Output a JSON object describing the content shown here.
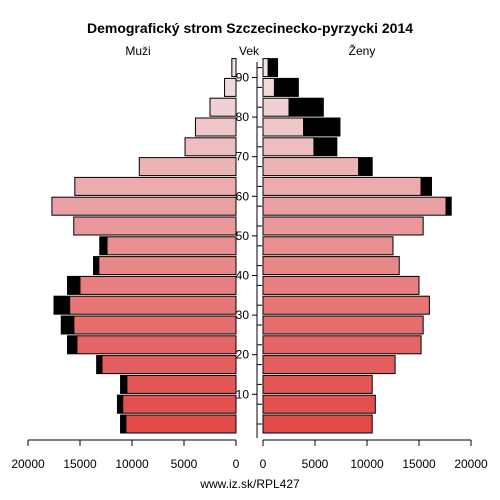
{
  "header": {
    "title": "Demografický strom Szczecinecko-pyrzycki 2014",
    "men_label": "Muži",
    "age_label": "Vek",
    "women_label": "Ženy"
  },
  "footer": {
    "source": "www.iz.sk/RPL427"
  },
  "chart_data": {
    "type": "bar",
    "orientation": "horizontal-population-pyramid",
    "title": "Demografický strom Szczecinecko-pyrzycki 2014",
    "age_groups": [
      "0-4",
      "5-9",
      "10-14",
      "15-19",
      "20-24",
      "25-29",
      "30-34",
      "35-39",
      "40-44",
      "45-49",
      "50-54",
      "55-59",
      "60-64",
      "65-69",
      "70-74",
      "75-79",
      "80-84",
      "85-89",
      "90+"
    ],
    "age_ticks": [
      10,
      20,
      30,
      40,
      50,
      60,
      70,
      80,
      90
    ],
    "x_ticks": {
      "men": [
        "20000",
        "15000",
        "10000",
        "5000",
        "0"
      ],
      "women": [
        "0",
        "5000",
        "10000",
        "15000",
        "20000"
      ]
    },
    "xlim": [
      0,
      20000
    ],
    "series": [
      {
        "name": "Muži",
        "values": [
          10600,
          10900,
          10500,
          12900,
          15300,
          15600,
          16000,
          15000,
          13200,
          12400,
          15600,
          17700,
          15500,
          9300,
          4900,
          3900,
          2500,
          1100,
          400
        ]
      },
      {
        "name": "Muži (surplus)",
        "values": [
          500,
          500,
          600,
          500,
          900,
          1200,
          1500,
          1200,
          500,
          700,
          0,
          0,
          0,
          0,
          0,
          0,
          0,
          0,
          0
        ]
      },
      {
        "name": "Ženy",
        "values": [
          10500,
          10800,
          10500,
          12700,
          15200,
          15400,
          16000,
          15000,
          13100,
          12500,
          15400,
          17600,
          15200,
          9200,
          4900,
          3900,
          2500,
          1100,
          500
        ]
      },
      {
        "name": "Ženy (surplus)",
        "values": [
          0,
          0,
          0,
          0,
          0,
          0,
          0,
          0,
          0,
          0,
          0,
          500,
          1000,
          1300,
          2200,
          3500,
          3300,
          2300,
          900
        ]
      }
    ],
    "colors": {
      "young": "#e24a4a",
      "old": "#f2e4e6",
      "surplus": "#000000",
      "stroke": "#000000"
    },
    "grid": false
  }
}
